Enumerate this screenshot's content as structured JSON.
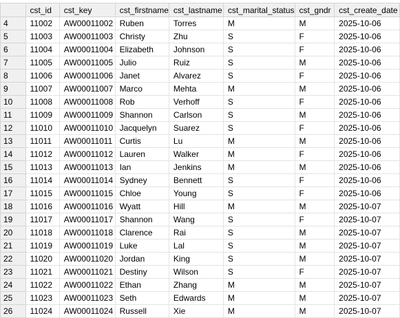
{
  "columns": [
    "cst_id",
    "cst_key",
    "cst_firstname",
    "cst_lastname",
    "cst_marital_status",
    "cst_gndr",
    "cst_create_date"
  ],
  "rows": [
    {
      "n": "4",
      "cells": [
        "11002",
        "AW00011002",
        "Ruben",
        "Torres",
        "M",
        "M",
        "2025-10-06"
      ]
    },
    {
      "n": "5",
      "cells": [
        "11003",
        "AW00011003",
        "Christy",
        "Zhu",
        "S",
        "F",
        "2025-10-06"
      ]
    },
    {
      "n": "6",
      "cells": [
        "11004",
        "AW00011004",
        "Elizabeth",
        "Johnson",
        "S",
        "F",
        "2025-10-06"
      ]
    },
    {
      "n": "7",
      "cells": [
        "11005",
        "AW00011005",
        "Julio",
        "Ruiz",
        "S",
        "M",
        "2025-10-06"
      ]
    },
    {
      "n": "8",
      "cells": [
        "11006",
        "AW00011006",
        "Janet",
        "Alvarez",
        "S",
        "F",
        "2025-10-06"
      ]
    },
    {
      "n": "9",
      "cells": [
        "11007",
        "AW00011007",
        "Marco",
        "Mehta",
        "M",
        "M",
        "2025-10-06"
      ]
    },
    {
      "n": "10",
      "cells": [
        "11008",
        "AW00011008",
        "Rob",
        "Verhoff",
        "S",
        "F",
        "2025-10-06"
      ]
    },
    {
      "n": "11",
      "cells": [
        "11009",
        "AW00011009",
        "Shannon",
        "Carlson",
        "S",
        "M",
        "2025-10-06"
      ]
    },
    {
      "n": "12",
      "cells": [
        "11010",
        "AW00011010",
        "Jacquelyn",
        "Suarez",
        "S",
        "F",
        "2025-10-06"
      ]
    },
    {
      "n": "13",
      "cells": [
        "11011",
        "AW00011011",
        "Curtis",
        "Lu",
        "M",
        "M",
        "2025-10-06"
      ]
    },
    {
      "n": "14",
      "cells": [
        "11012",
        "AW00011012",
        "Lauren",
        "Walker",
        "M",
        "F",
        "2025-10-06"
      ]
    },
    {
      "n": "15",
      "cells": [
        "11013",
        "AW00011013",
        "Ian",
        "Jenkins",
        "M",
        "M",
        "2025-10-06"
      ]
    },
    {
      "n": "16",
      "cells": [
        "11014",
        "AW00011014",
        "Sydney",
        "Bennett",
        "S",
        "F",
        "2025-10-06"
      ]
    },
    {
      "n": "17",
      "cells": [
        "11015",
        "AW00011015",
        "Chloe",
        "Young",
        "S",
        "F",
        "2025-10-06"
      ]
    },
    {
      "n": "18",
      "cells": [
        "11016",
        "AW00011016",
        "Wyatt",
        "Hill",
        "M",
        "M",
        "2025-10-07"
      ]
    },
    {
      "n": "19",
      "cells": [
        "11017",
        "AW00011017",
        "Shannon",
        "Wang",
        "S",
        "F",
        "2025-10-07"
      ]
    },
    {
      "n": "20",
      "cells": [
        "11018",
        "AW00011018",
        "Clarence",
        "Rai",
        "S",
        "M",
        "2025-10-07"
      ]
    },
    {
      "n": "21",
      "cells": [
        "11019",
        "AW00011019",
        "Luke",
        "Lal",
        "S",
        "M",
        "2025-10-07"
      ]
    },
    {
      "n": "22",
      "cells": [
        "11020",
        "AW00011020",
        "Jordan",
        "King",
        "S",
        "M",
        "2025-10-07"
      ]
    },
    {
      "n": "23",
      "cells": [
        "11021",
        "AW00011021",
        "Destiny",
        "Wilson",
        "S",
        "F",
        "2025-10-07"
      ]
    },
    {
      "n": "24",
      "cells": [
        "11022",
        "AW00011022",
        "Ethan",
        "Zhang",
        "M",
        "M",
        "2025-10-07"
      ]
    },
    {
      "n": "25",
      "cells": [
        "11023",
        "AW00011023",
        "Seth",
        "Edwards",
        "M",
        "M",
        "2025-10-07"
      ]
    },
    {
      "n": "26",
      "cells": [
        "11024",
        "AW00011024",
        "Russell",
        "Xie",
        "M",
        "M",
        "2025-10-07"
      ]
    }
  ]
}
